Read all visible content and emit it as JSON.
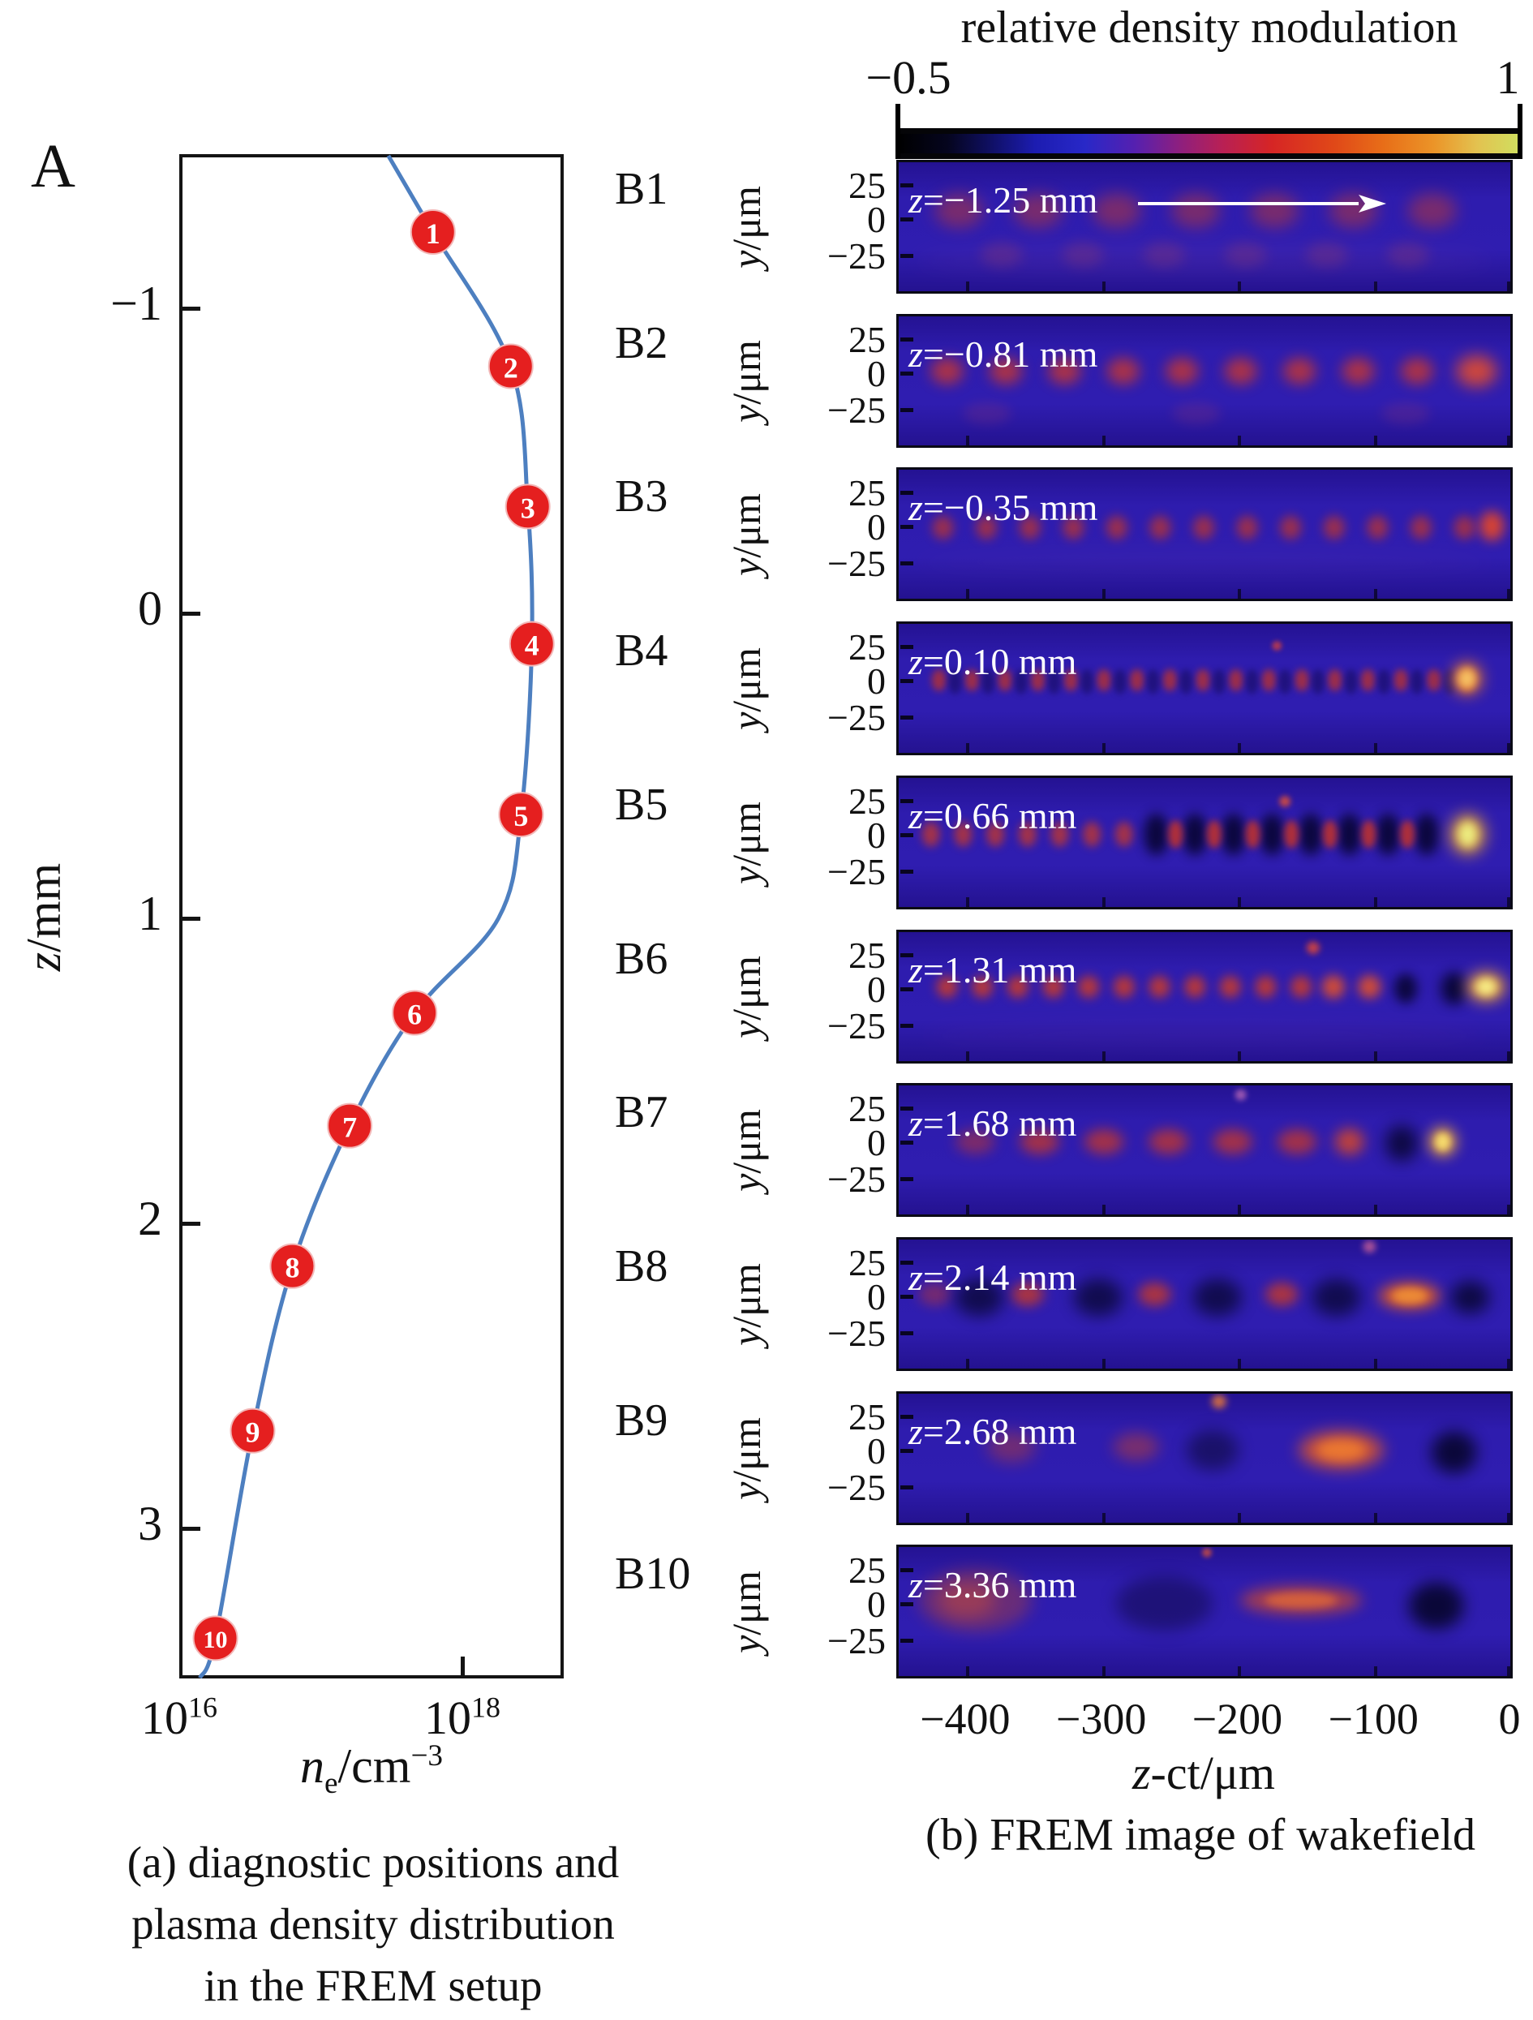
{
  "figure_a": {
    "corner_label": "A",
    "ylabel": "z/mm",
    "y_ticks": [
      {
        "label": "−1",
        "z": -1
      },
      {
        "label": "0",
        "z": 0
      },
      {
        "label": "1",
        "z": 1
      },
      {
        "label": "2",
        "z": 2
      },
      {
        "label": "3",
        "z": 3
      }
    ],
    "x_ticks": [
      {
        "base": "10",
        "exp": "16",
        "ne": 1e+16
      },
      {
        "base": "10",
        "exp": "18",
        "ne": 1e+18
      }
    ],
    "xlabel": {
      "italic": "n",
      "sub": "e",
      "rest": "/cm",
      "sup": "−3"
    },
    "caption": [
      "(a) diagnostic positions and",
      "plasma density distribution",
      "in the FREM setup"
    ]
  },
  "figure_b": {
    "colorbar": {
      "title": "relative density modulation",
      "min": "−0.5",
      "max": "1"
    },
    "ylabel": "y/μm",
    "row_y_ticks": [
      "25",
      "0",
      "−25"
    ],
    "rows": [
      {
        "label": "B1",
        "z_text": "z=−1.25 mm",
        "has_arrow": true
      },
      {
        "label": "B2",
        "z_text": "z=−0.81 mm"
      },
      {
        "label": "B3",
        "z_text": "z=−0.35 mm"
      },
      {
        "label": "B4",
        "z_text": "z=0.10 mm"
      },
      {
        "label": "B5",
        "z_text": "z=0.66 mm"
      },
      {
        "label": "B6",
        "z_text": "z=1.31 mm"
      },
      {
        "label": "B7",
        "z_text": "z=1.68 mm"
      },
      {
        "label": "B8",
        "z_text": "z=2.14 mm"
      },
      {
        "label": "B9",
        "z_text": "z=2.68 mm"
      },
      {
        "label": "B10",
        "z_text": "z=3.36 mm"
      }
    ],
    "x_ticks": [
      "−400",
      "−300",
      "−200",
      "−100",
      "0"
    ],
    "xlabel": "z-ct/μm",
    "caption": "(b) FREM image of wakefield"
  },
  "chart_data": [
    {
      "type": "line",
      "panel": "A",
      "title": "diagnostic positions and plasma density distribution",
      "xlabel": "ne/cm^-3",
      "ylabel": "z/mm",
      "x_scale": "log",
      "x_range": [
        1e+16,
        5.2e+18
      ],
      "y_range": [
        -1.5,
        3.49
      ],
      "y_inverted": true,
      "curve": [
        [
          -1.5,
          3e+17
        ],
        [
          -1.25,
          6.2e+17
        ],
        [
          -0.81,
          2.2e+18
        ],
        [
          -0.35,
          2.9e+18
        ],
        [
          0.1,
          3.1e+18
        ],
        [
          0.66,
          2.6e+18
        ],
        [
          1.0,
          1.8e+18
        ],
        [
          1.31,
          4.6e+17
        ],
        [
          1.68,
          1.6e+17
        ],
        [
          2.14,
          6.3e+16
        ],
        [
          2.68,
          3.3e+16
        ],
        [
          3.36,
          1.8e+16
        ],
        [
          3.49,
          1.4e+16
        ]
      ],
      "markers": [
        {
          "n": "1",
          "z": -1.25,
          "ne": 6.2e+17
        },
        {
          "n": "2",
          "z": -0.81,
          "ne": 2.2e+18
        },
        {
          "n": "3",
          "z": -0.35,
          "ne": 2.9e+18
        },
        {
          "n": "4",
          "z": 0.1,
          "ne": 3.1e+18
        },
        {
          "n": "5",
          "z": 0.66,
          "ne": 2.6e+18
        },
        {
          "n": "6",
          "z": 1.31,
          "ne": 4.6e+17
        },
        {
          "n": "7",
          "z": 1.68,
          "ne": 1.6e+17
        },
        {
          "n": "8",
          "z": 2.14,
          "ne": 6.3e+16
        },
        {
          "n": "9",
          "z": 2.68,
          "ne": 3.3e+16
        },
        {
          "n": "10",
          "z": 3.36,
          "ne": 1.8e+16
        }
      ],
      "marker_color": "#e51f1f",
      "curve_color": "#4d7fc0"
    },
    {
      "type": "heatmap",
      "panel": "B",
      "title": "FREM image of wakefield",
      "colorbar": {
        "label": "relative density modulation",
        "min": -0.5,
        "max": 1
      },
      "x_axis": {
        "label": "z-ct/μm",
        "range": [
          -450,
          2
        ],
        "ticks": [
          -400,
          -300,
          -200,
          -100,
          0
        ]
      },
      "y_axis": {
        "label": "y/μm",
        "ticks": [
          25,
          0,
          -25
        ]
      },
      "background_color": "#2b1aa8",
      "panels": [
        {
          "label": "B1",
          "z_mm": -1.25,
          "blobs": [
            [
              75,
              62,
              30,
              22,
              "#c23a2e",
              0.5,
              7,
              98
            ],
            [
              128,
              118,
              26,
              16,
              "#a84058",
              0.28,
              6,
              101
            ],
            [
              380,
              126,
              360,
              20,
              "#8040a0",
              0.15
            ]
          ]
        },
        {
          "label": "B2",
          "z_mm": -0.81,
          "blobs": [
            [
              60,
              70,
              20,
              17,
              "#c83830",
              0.8,
              9,
              73
            ],
            [
              718,
              70,
              25,
              20,
              "#e04c30",
              0.9
            ],
            [
              110,
              124,
              30,
              14,
              "#a03868",
              0.22,
              3,
              260
            ]
          ]
        },
        {
          "label": "B3",
          "z_mm": -0.35,
          "blobs": [
            [
              55,
              74,
              13,
              15,
              "#bc3530",
              0.75,
              13,
              54
            ],
            [
              737,
              72,
              15,
              19,
              "#e0452c",
              0.95
            ],
            [
              380,
              118,
              360,
              16,
              "#6838a0",
              0.12
            ]
          ]
        },
        {
          "label": "B4",
          "z_mm": 0.1,
          "blobs": [
            [
              50,
              72,
              9,
              14,
              "#b83230",
              0.8,
              17,
              41
            ],
            [
              70,
              74,
              8,
              16,
              "#150a55",
              0.55,
              16,
              41
            ],
            [
              706,
              70,
              19,
              21,
              "#e87428",
              0.9
            ],
            [
              706,
              70,
              11,
              13,
              "#f8c868",
              0.95
            ],
            [
              470,
              28,
              6,
              6,
              "#d04040",
              0.8
            ]
          ]
        },
        {
          "label": "B5",
          "z_mm": 0.66,
          "blobs": [
            [
              40,
              72,
              11,
              16,
              "#c03830",
              0.8,
              7,
              40
            ],
            [
              320,
              72,
              15,
              27,
              "#070430",
              0.9,
              8,
              48
            ],
            [
              344,
              72,
              9,
              18,
              "#c83428",
              0.85,
              7,
              48
            ],
            [
              707,
              72,
              22,
              26,
              "#e8a030",
              0.9
            ],
            [
              707,
              72,
              12,
              16,
              "#eef284",
              0.95
            ],
            [
              480,
              30,
              7,
              7,
              "#e05038",
              0.85
            ]
          ]
        },
        {
          "label": "B6",
          "z_mm": 1.31,
          "blobs": [
            [
              60,
              70,
              13,
              14,
              "#cc3c28",
              0.85,
              11,
              44
            ],
            [
              540,
              70,
              14,
              15,
              "#e0502c",
              0.9,
              2,
              45
            ],
            [
              630,
              72,
              14,
              19,
              "#070430",
              0.88
            ],
            [
              690,
              72,
              16,
              21,
              "#070430",
              0.92
            ],
            [
              730,
              70,
              24,
              19,
              "#f0a030",
              0.9
            ],
            [
              730,
              70,
              13,
              11,
              "#f8f088",
              0.95
            ],
            [
              515,
              20,
              8,
              8,
              "#e04838",
              0.85
            ],
            [
              380,
              132,
              350,
              16,
              "#7030a0",
              0.13
            ]
          ]
        },
        {
          "label": "B7",
          "z_mm": 1.68,
          "blobs": [
            [
              95,
              72,
              24,
              16,
              "#c83828",
              0.5
            ],
            [
              175,
              72,
              24,
              16,
              "#c83828",
              0.75,
              5,
              80
            ],
            [
              560,
              72,
              18,
              17,
              "#d84828",
              0.85
            ],
            [
              625,
              74,
              20,
              23,
              "#090634",
              0.88
            ],
            [
              676,
              72,
              17,
              19,
              "#f0a838",
              0.9
            ],
            [
              676,
              72,
              9,
              11,
              "#f8e070",
              0.95
            ],
            [
              425,
              12,
              7,
              7,
              "#b868b8",
              0.8
            ]
          ]
        },
        {
          "label": "B8",
          "z_mm": 2.14,
          "blobs": [
            [
              45,
              70,
              20,
              15,
              "#c83a28",
              0.45
            ],
            [
              160,
              70,
              20,
              15,
              "#c83a28",
              0.8,
              3,
              158
            ],
            [
              100,
              74,
              30,
              24,
              "#0a0838",
              0.8,
              4,
              148
            ],
            [
              635,
              72,
              38,
              17,
              "#e05c24",
              0.9
            ],
            [
              635,
              72,
              22,
              10,
              "#f09036",
              0.9
            ],
            [
              710,
              74,
              24,
              21,
              "#0a0838",
              0.9
            ],
            [
              585,
              9,
              8,
              8,
              "#c86098",
              0.8
            ]
          ]
        },
        {
          "label": "B9",
          "z_mm": 2.68,
          "blobs": [
            [
              140,
              68,
              30,
              20,
              "#c04030",
              0.45
            ],
            [
              295,
              68,
              28,
              18,
              "#c04030",
              0.5
            ],
            [
              390,
              72,
              32,
              26,
              "#0d0a3c",
              0.6
            ],
            [
              550,
              72,
              52,
              24,
              "#e05828",
              0.85
            ],
            [
              550,
              72,
              30,
              13,
              "#ef7c30",
              0.9
            ],
            [
              690,
              75,
              28,
              27,
              "#080630",
              0.92
            ],
            [
              398,
              10,
              9,
              9,
              "#e87838",
              0.85
            ]
          ]
        },
        {
          "label": "B10",
          "z_mm": 3.36,
          "blobs": [
            [
              95,
              68,
              70,
              40,
              "#b04038",
              0.45
            ],
            [
              85,
              68,
              35,
              22,
              "#c84c38",
              0.5
            ],
            [
              330,
              72,
              60,
              35,
              "#140c55",
              0.6
            ],
            [
              500,
              68,
              75,
              18,
              "#cc4830",
              0.75
            ],
            [
              500,
              68,
              45,
              10,
              "#e06838",
              0.8
            ],
            [
              668,
              75,
              34,
              30,
              "#080630",
              0.93
            ],
            [
              383,
              7,
              6,
              6,
              "#d05040",
              0.8
            ]
          ]
        }
      ]
    }
  ]
}
